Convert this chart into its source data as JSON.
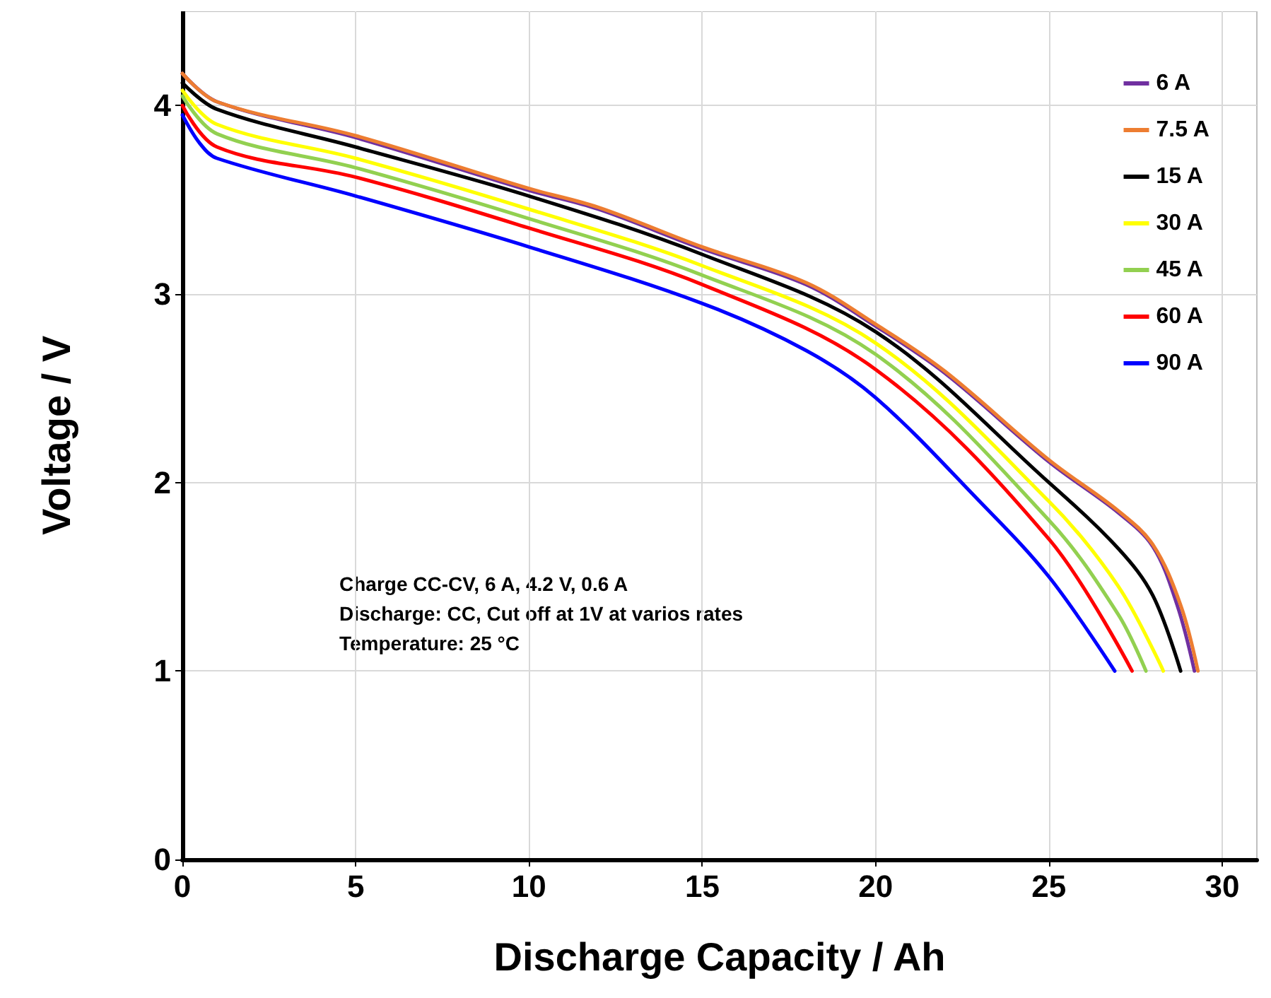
{
  "chart_data": {
    "type": "line",
    "xlabel": "Discharge Capacity / Ah",
    "ylabel": "Voltage / V",
    "xlim": [
      0,
      31
    ],
    "xticks": [
      0,
      5,
      10,
      15,
      20,
      25,
      30
    ],
    "ylim": [
      0,
      4.5
    ],
    "yticks": [
      0,
      1,
      2,
      3,
      4
    ],
    "grid": true,
    "legend": "top right",
    "marker": "none",
    "line_style": "solid",
    "annotations": [
      "Charge CC-CV, 6 A, 4.2 V, 0.6 A",
      "Discharge: CC, Cut off at 1V at varios rates",
      "Temperature: 25 °C"
    ],
    "series": [
      {
        "name": "6 A",
        "color": "#7030a0",
        "x": [
          0,
          1,
          5,
          10,
          12,
          15,
          18,
          20,
          22,
          25,
          27,
          28,
          28.7,
          29.2
        ],
        "values": [
          4.17,
          4.02,
          3.83,
          3.55,
          3.45,
          3.24,
          3.05,
          2.83,
          2.58,
          2.11,
          1.84,
          1.66,
          1.35,
          1.0
        ]
      },
      {
        "name": "7.5 A",
        "color": "#ed7d31",
        "x": [
          0,
          1,
          5,
          10,
          12,
          15,
          18,
          20,
          22,
          25,
          27,
          28,
          28.8,
          29.3
        ],
        "values": [
          4.17,
          4.02,
          3.84,
          3.56,
          3.46,
          3.25,
          3.06,
          2.84,
          2.59,
          2.12,
          1.85,
          1.67,
          1.35,
          1.0
        ]
      },
      {
        "name": "15 A",
        "color": "#000000",
        "x": [
          0,
          1,
          5,
          10,
          15,
          20,
          25,
          27,
          28,
          28.8
        ],
        "values": [
          4.12,
          3.98,
          3.78,
          3.52,
          3.21,
          2.8,
          2.0,
          1.65,
          1.4,
          1.0
        ]
      },
      {
        "name": "30 A",
        "color": "#ffff00",
        "x": [
          0,
          1,
          5,
          10,
          15,
          20,
          25,
          27,
          28.3
        ],
        "values": [
          4.08,
          3.9,
          3.72,
          3.45,
          3.15,
          2.74,
          1.9,
          1.45,
          1.0
        ]
      },
      {
        "name": "45 A",
        "color": "#92d050",
        "x": [
          0,
          1,
          5,
          10,
          15,
          20,
          25,
          27,
          27.8
        ],
        "values": [
          4.05,
          3.85,
          3.67,
          3.4,
          3.1,
          2.68,
          1.8,
          1.3,
          1.0
        ]
      },
      {
        "name": "60 A",
        "color": "#ff0000",
        "x": [
          0,
          1,
          5,
          10,
          15,
          20,
          25,
          27.4
        ],
        "values": [
          4.0,
          3.78,
          3.62,
          3.35,
          3.05,
          2.6,
          1.7,
          1.0
        ]
      },
      {
        "name": "90 A",
        "color": "#0000ff",
        "x": [
          0,
          0.5,
          1,
          5,
          10,
          15,
          18,
          20,
          23,
          25,
          26.9
        ],
        "values": [
          3.95,
          3.8,
          3.72,
          3.52,
          3.25,
          2.95,
          2.7,
          2.45,
          1.9,
          1.5,
          1.0
        ]
      }
    ]
  }
}
